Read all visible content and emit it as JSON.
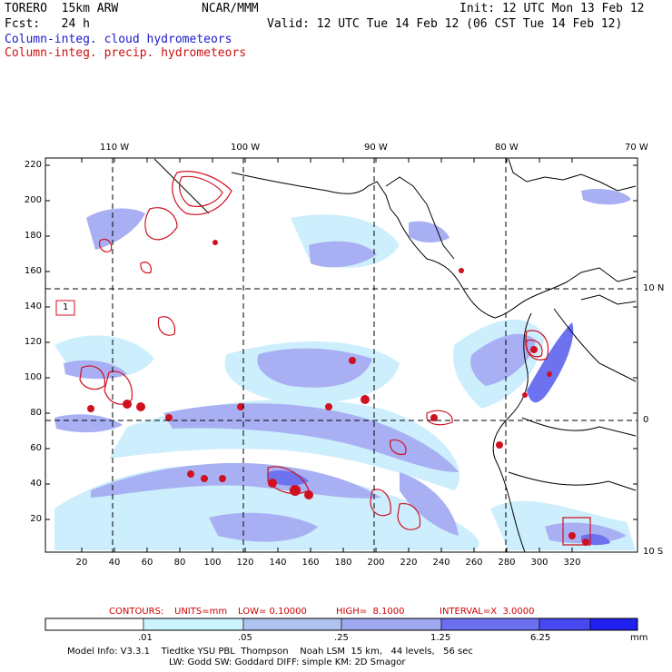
{
  "header": {
    "model": "TORERO  15km ARW",
    "org": "NCAR/MMM",
    "init": "Init: 12 UTC Mon 13 Feb 12",
    "fcst": "Fcst:   24 h",
    "valid": "Valid: 12 UTC Tue 14 Feb 12 (06 CST Tue 14 Feb 12)",
    "field1": "Column-integ. cloud hydrometeors",
    "field2": "Column-integ. precip. hydrometeors"
  },
  "map": {
    "lon_labels": [
      "110 W",
      "100 W",
      "90 W",
      "80 W",
      "70 W"
    ],
    "lat_labels": [
      "10 N",
      "0",
      "10 S"
    ],
    "y_ticks": [
      "220",
      "200",
      "180",
      "160",
      "140",
      "120",
      "100",
      "80",
      "60",
      "40",
      "20"
    ],
    "x_ticks": [
      "20",
      "40",
      "60",
      "80",
      "100",
      "120",
      "140",
      "160",
      "180",
      "200",
      "220",
      "240",
      "260",
      "280",
      "300",
      "320"
    ],
    "box_label": "1",
    "cloud_color": "#a9b0f5",
    "light_color": "#cceeff",
    "mid_color": "#7070f0",
    "precip_color": "#d01020"
  },
  "contours": {
    "label": "CONTOURS:",
    "units": "UNITS=mm",
    "low": "LOW= 0.10000",
    "high": "HIGH=  8.1000",
    "interval": "INTERVAL=X  3.0000"
  },
  "colorbar": {
    "labels": [
      ".01",
      ".05",
      ".25",
      "1.25",
      "6.25"
    ],
    "unit": "mm",
    "colors": [
      "#ffffff",
      "#ccf4ff",
      "#b0c4f0",
      "#a0a8f0",
      "#6a70f0",
      "#4848f0",
      "#2020f0"
    ]
  },
  "footer": {
    "line1": "Model Info: V3.3.1    Tiedtke YSU PBL  Thompson    Noah LSM  15 km,   44 levels,   56 sec",
    "line2": "LW: Godd SW: Goddard DIFF: simple KM: 2D Smagor"
  }
}
